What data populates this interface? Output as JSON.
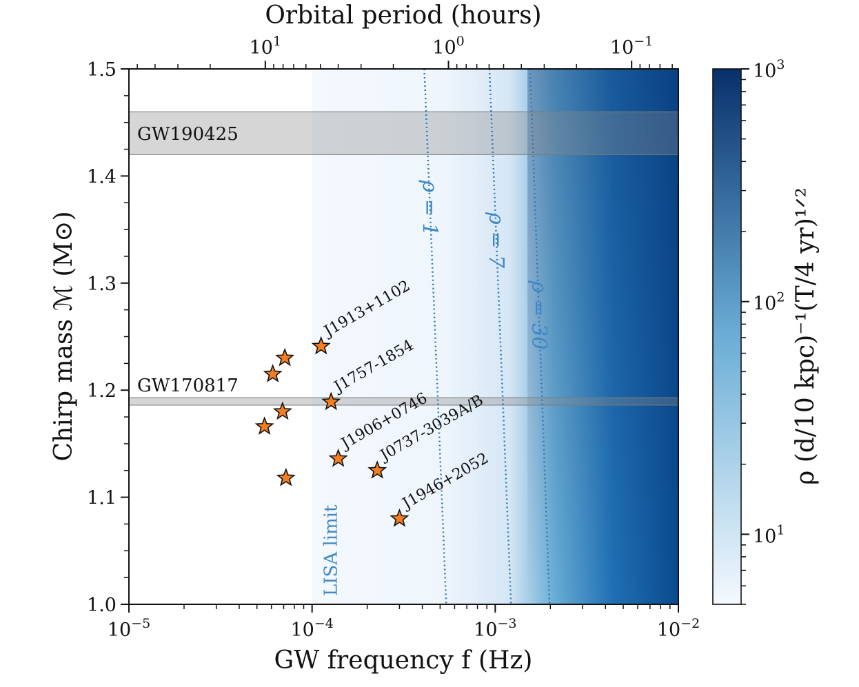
{
  "chart_data": {
    "type": "scatter",
    "xlabel": "GW frequency f (Hz)",
    "ylabel": "Chirp mass ℳ (M⊙)",
    "top_xlabel": "Orbital period (hours)",
    "colorbar_label": "ρ (d/10 kpc)⁻¹(T/4 yr)¹ᐟ²",
    "xscale": "log",
    "xlim": [
      1e-05,
      0.01
    ],
    "ylim": [
      1.0,
      1.5
    ],
    "x_ticks": [
      {
        "value": 1e-05,
        "base": "10",
        "exp": "−5"
      },
      {
        "value": 0.0001,
        "base": "10",
        "exp": "−4"
      },
      {
        "value": 0.001,
        "base": "10",
        "exp": "−3"
      },
      {
        "value": 0.01,
        "base": "10",
        "exp": "−2"
      }
    ],
    "y_ticks": [
      "1.0",
      "1.1",
      "1.2",
      "1.3",
      "1.4",
      "1.5"
    ],
    "top_ticks": [
      {
        "hours": 10,
        "base": "10",
        "exp": "1"
      },
      {
        "hours": 1,
        "base": "10",
        "exp": "0"
      },
      {
        "hours": 0.1,
        "base": "10",
        "exp": "−1"
      }
    ],
    "colorbar": {
      "scale": "log",
      "range": [
        5,
        1000
      ],
      "ticks": [
        {
          "value": 10,
          "base": "10",
          "exp": "1"
        },
        {
          "value": 100,
          "base": "10",
          "exp": "2"
        },
        {
          "value": 1000,
          "base": "10",
          "exp": "3"
        }
      ],
      "color_low": "#f4f9fe",
      "color_mid": "#6baed6",
      "color_high": "#08306b"
    },
    "bands": [
      {
        "label": "GW190425",
        "ymin": 1.42,
        "ymax": 1.46
      },
      {
        "label": "GW170817",
        "ymin": 1.186,
        "ymax": 1.193
      }
    ],
    "lisa_limit": {
      "label": "LISA limit",
      "f": 0.0001
    },
    "contours": [
      {
        "label": "ρ = 1",
        "f_at_1_5": 0.00041,
        "f_at_1_0": 0.00054
      },
      {
        "label": "ρ = 7",
        "f_at_1_5": 0.00093,
        "f_at_1_0": 0.00122
      },
      {
        "label": "ρ = 30",
        "f_at_1_5": 0.00155,
        "f_at_1_0": 0.00198
      }
    ],
    "pulsars": [
      {
        "label": "J1913+1102",
        "f": 0.000112,
        "mass": 1.241
      },
      {
        "label": "J1757-1854",
        "f": 0.000127,
        "mass": 1.189
      },
      {
        "label": "J1906+0746",
        "f": 0.000139,
        "mass": 1.136
      },
      {
        "label": "J0737-3039A/B",
        "f": 0.000227,
        "mass": 1.125
      },
      {
        "label": "J1946+2052",
        "f": 0.0003,
        "mass": 1.08
      },
      {
        "label": "",
        "f": 5.5e-05,
        "mass": 1.166
      },
      {
        "label": "",
        "f": 6.1e-05,
        "mass": 1.215
      },
      {
        "label": "",
        "f": 7.1e-05,
        "mass": 1.23
      },
      {
        "label": "",
        "f": 6.9e-05,
        "mass": 1.18
      },
      {
        "label": "",
        "f": 7.2e-05,
        "mass": 1.118
      }
    ],
    "marker_color": "#f57f20"
  }
}
